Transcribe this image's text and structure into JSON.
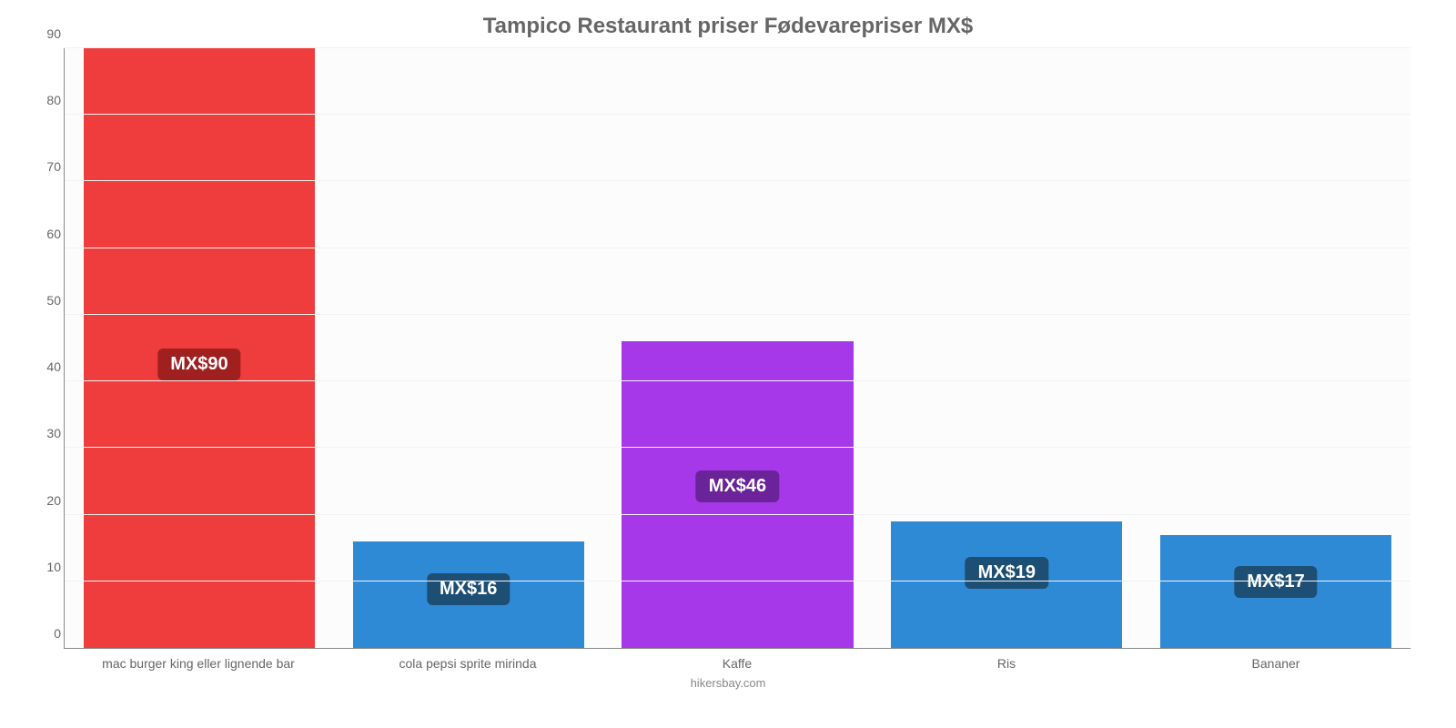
{
  "chart": {
    "type": "bar",
    "title": "Tampico Restaurant priser Fødevarepriser MX$",
    "title_color": "#666666",
    "title_fontsize": 24,
    "credit": "hikersbay.com",
    "credit_color": "#888888",
    "background_color": "#ffffff",
    "plot_background_color": "#fcfcfc",
    "grid_color": "#f2f2f2",
    "axis_color": "#888888",
    "tick_color": "#666666",
    "tick_fontsize": 14,
    "y": {
      "min": 0,
      "max": 90,
      "step": 10
    },
    "currency_prefix": "MX$",
    "bar_width_pct": 86,
    "badge_text_color": "#ffffff",
    "badge_fontsize": 20,
    "categories": [
      {
        "label": "mac burger king eller lignende bar",
        "value": 90,
        "bar_color": "#ef3c3c",
        "badge_bg": "#a01f1f",
        "badge_offset_pct": 50
      },
      {
        "label": "cola pepsi sprite mirinda",
        "value": 16,
        "bar_color": "#2f8ad6",
        "badge_bg": "#1d4e74",
        "badge_offset_pct": 30
      },
      {
        "label": "Kaffe",
        "value": 46,
        "bar_color": "#a638ea",
        "badge_bg": "#6a2398",
        "badge_offset_pct": 42
      },
      {
        "label": "Ris",
        "value": 19,
        "bar_color": "#2f8ad6",
        "badge_bg": "#1d4e74",
        "badge_offset_pct": 28
      },
      {
        "label": "Bananer",
        "value": 17,
        "bar_color": "#2f8ad6",
        "badge_bg": "#1d4e74",
        "badge_offset_pct": 28
      }
    ]
  }
}
